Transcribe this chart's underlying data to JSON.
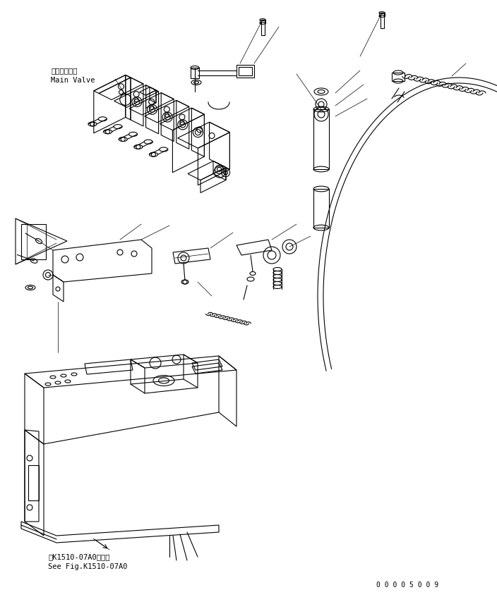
{
  "bg_color": "#ffffff",
  "line_color": "#000000",
  "figsize": [
    7.04,
    8.47
  ],
  "dpi": 100,
  "label_main_valve_jp": "メインバルブ",
  "label_main_valve_en": "Main Valve",
  "label_ref_jp": "第K1510-07A0図参照",
  "label_ref_en": "See Fig.K1510-07A0",
  "label_part_number": "0 0 0 0 5 0 0 9",
  "font_size_label": 7.5,
  "font_size_ref": 7.5,
  "font_size_part": 7
}
